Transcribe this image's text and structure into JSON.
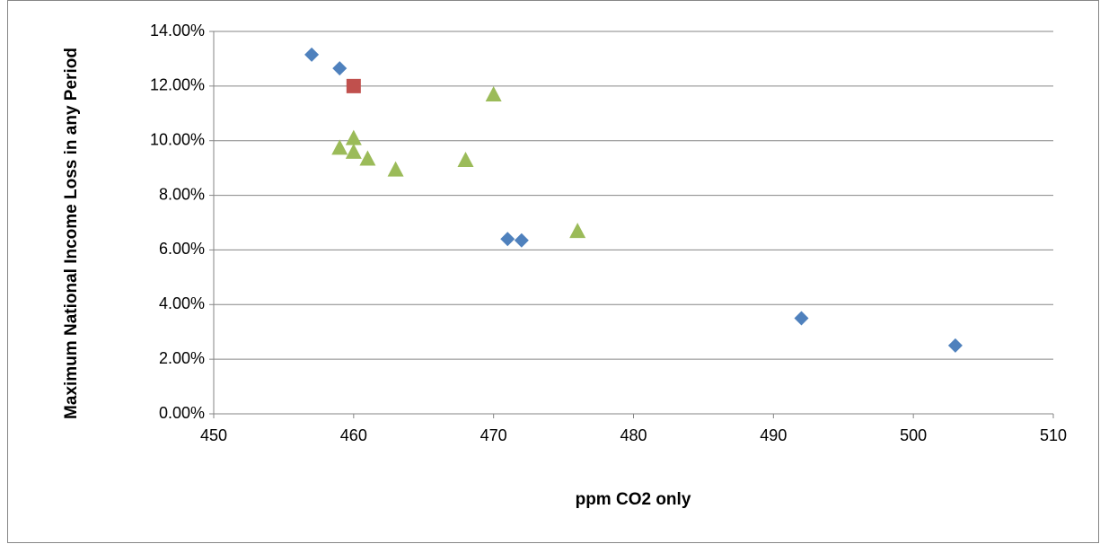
{
  "chart_data": {
    "type": "scatter",
    "x_label": "ppm CO2 only",
    "y_label": "Maximum National Income Loss in any Period",
    "xlim": [
      450,
      510
    ],
    "xticks": [
      450,
      460,
      470,
      480,
      490,
      500,
      510
    ],
    "ylim": [
      0,
      14
    ],
    "yticks": [
      {
        "value": 0,
        "label": "0.00%"
      },
      {
        "value": 2,
        "label": "2.00%"
      },
      {
        "value": 4,
        "label": "4.00%"
      },
      {
        "value": 6,
        "label": "6.00%"
      },
      {
        "value": 8,
        "label": "8.00%"
      },
      {
        "value": 10,
        "label": "10.00%"
      },
      {
        "value": 12,
        "label": "12.00%"
      },
      {
        "value": 14,
        "label": "14.00%"
      }
    ],
    "grid": true,
    "series": [
      {
        "color": "#4f81bd",
        "marker": "diamond",
        "x": [
          457,
          459,
          471,
          472,
          492,
          503
        ],
        "values": [
          13.15,
          12.65,
          6.4,
          6.35,
          3.5,
          2.5
        ]
      },
      {
        "color": "#c0504d",
        "marker": "square",
        "x": [
          460
        ],
        "values": [
          12.0
        ]
      },
      {
        "color": "#9bbb59",
        "marker": "triangle",
        "x": [
          459,
          460,
          460,
          461,
          463,
          468,
          470,
          476
        ],
        "values": [
          9.75,
          10.1,
          9.6,
          9.35,
          8.95,
          9.3,
          11.7,
          6.7
        ]
      }
    ]
  }
}
